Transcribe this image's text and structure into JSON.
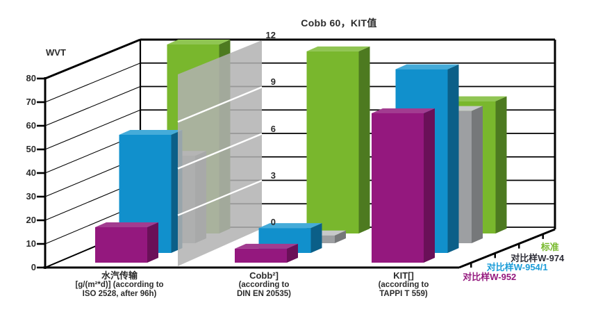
{
  "title": "Cobb 60，KIT值",
  "left_axis": {
    "label": "WVT",
    "ticks": [
      0,
      10,
      20,
      30,
      40,
      50,
      60,
      70,
      80
    ],
    "range": [
      0,
      80
    ]
  },
  "right_axis": {
    "ticks": [
      0,
      3,
      6,
      9,
      12
    ],
    "range": [
      0,
      12
    ]
  },
  "categories": [
    {
      "lines": [
        "水汽传输",
        "[g/(m²*d)] (according to",
        "ISO 2528, after 96h)"
      ]
    },
    {
      "lines": [
        "Cobb²]",
        "(according to",
        "DIN EN 20535)"
      ]
    },
    {
      "lines": [
        "KIT[]",
        "(according to",
        "TAPPI T 559)"
      ]
    }
  ],
  "colors": {
    "line": "#000000",
    "text": "#2b2b2b",
    "background": "#ffffff"
  },
  "chart_data": {
    "type": "bar",
    "projection": "3d-oblique",
    "title": "Cobb 60，KIT值",
    "categories": [
      "水汽传输 [g/(m²*d)] (according to ISO 2528, after 96h)",
      "Cobb²] (according to DIN EN 20535)",
      "KIT[] (according to TAPPI T 559)"
    ],
    "category_axis": [
      "left",
      "right",
      "right"
    ],
    "left_axis": {
      "label": "WVT",
      "range": [
        0,
        80
      ],
      "ticks": [
        0,
        10,
        20,
        30,
        40,
        50,
        60,
        70,
        80
      ]
    },
    "right_axis": {
      "range": [
        0,
        12
      ],
      "ticks": [
        0,
        3,
        6,
        9,
        12
      ]
    },
    "series": [
      {
        "name": "对比样W-952",
        "depth_row": 1,
        "values": [
          15,
          0.9,
          9.6
        ],
        "colors": {
          "front": "#94187e",
          "top": "#a23c90",
          "side": "#6a1058"
        },
        "label_color": "#94187e"
      },
      {
        "name": "对比样W-954/1",
        "depth_row": 2,
        "values": [
          50,
          1.6,
          11.8
        ],
        "colors": {
          "front": "#1190cc",
          "top": "#45abd9",
          "side": "#0b5f88"
        },
        "label_color": "#1a9cd8"
      },
      {
        "name": "对比样W-974",
        "depth_row": 3,
        "values": [
          37,
          0.5,
          8.5
        ],
        "colors": {
          "front": "#9d9fa2",
          "top": "#c6c8ca",
          "side": "#76787a"
        },
        "label_color": "#2e2e38"
      },
      {
        "name": "标准",
        "depth_row": 4,
        "values": [
          80,
          11.7,
          8.5
        ],
        "colors": {
          "front": "#79b72d",
          "top": "#90c553",
          "side": "#4d7a20"
        },
        "label_color": "#76b82a"
      }
    ],
    "secondary_axis_plane": {
      "color": "#b2b2b2",
      "opacity": 0.85,
      "gridline_color": "#ffffff"
    },
    "legend_position": "bottom-right-diagonal",
    "grid": true
  }
}
